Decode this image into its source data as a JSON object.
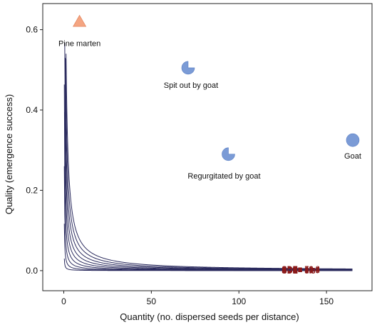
{
  "chart_data": {
    "type": "scatter",
    "xlabel": "Quantity (no. dispersed seeds per distance)",
    "ylabel": "Quality (emergence success)",
    "xlim": [
      -12,
      176
    ],
    "ylim": [
      -0.05,
      0.665
    ],
    "xticks": [
      0,
      50,
      100,
      150
    ],
    "yticks": [
      0.0,
      0.2,
      0.4,
      0.6
    ],
    "xtick_labels": [
      "0",
      "50",
      "100",
      "150"
    ],
    "ytick_labels": [
      "0.0",
      "0.2",
      "0.4",
      "0.6"
    ],
    "grid": false,
    "contour_curve_end_x": 165,
    "contours": [
      {
        "value": 0.9,
        "label": "SDE= 0.9"
      },
      {
        "value": 3.5,
        "label": "SDE= 3.5"
      },
      {
        "value": 7.8,
        "label": "SDE= 7.8"
      },
      {
        "value": 13.9,
        "label": "SDE= 13.9"
      },
      {
        "value": 21.7,
        "label": "SDE= 21.7"
      },
      {
        "value": 31.2,
        "label": "SDE= 31.2"
      },
      {
        "value": 42.4,
        "label": "SDE= 42.4"
      },
      {
        "value": 55.4,
        "label": "SDE= 55.4"
      },
      {
        "value": 70.2,
        "label": "SDE= 70.2"
      }
    ],
    "points": [
      {
        "name": "Pine marten",
        "x": 9,
        "y": 0.62,
        "shape": "triangle",
        "color": "#f4a582",
        "fraction": 1
      },
      {
        "name": "Spit out by goat",
        "x": 71,
        "y": 0.505,
        "shape": "pie",
        "color": "#7b9bd6",
        "fraction": 0.75
      },
      {
        "name": "Regurgitated by goat",
        "x": 94,
        "y": 0.29,
        "shape": "pie",
        "color": "#7b9bd6",
        "fraction": 0.75
      },
      {
        "name": "Goat",
        "x": 165,
        "y": 0.325,
        "shape": "circle",
        "color": "#7b9bd6",
        "fraction": 1
      }
    ],
    "colors": {
      "contour": "#2b2b5e",
      "contour_label": "#8b1a1a",
      "axis": "#222222"
    }
  }
}
